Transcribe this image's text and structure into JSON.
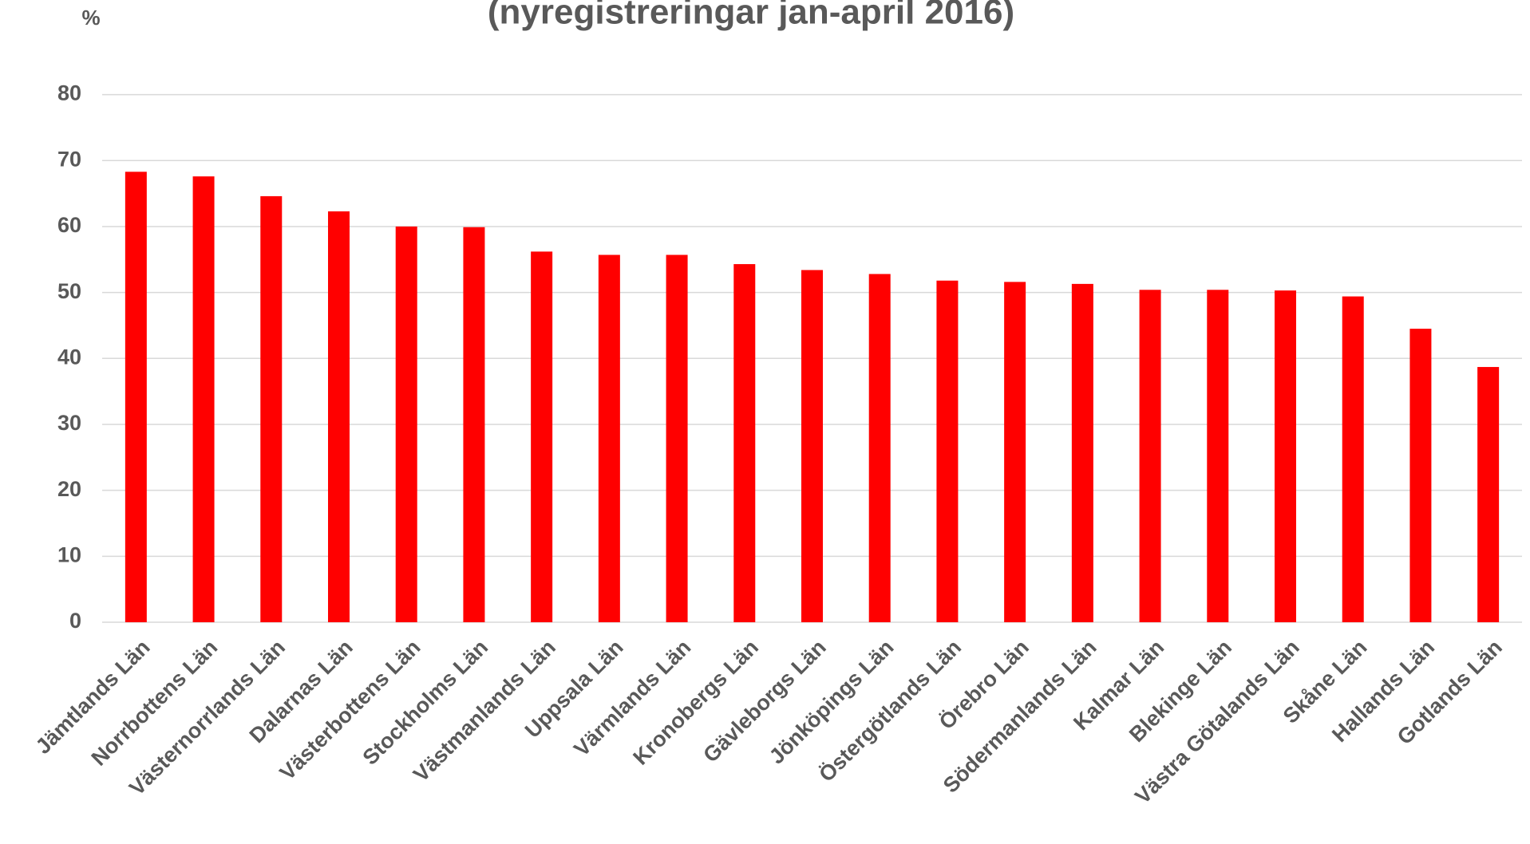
{
  "chart_data": {
    "type": "bar",
    "title": "(nyregistreringar jan-april 2016)",
    "y_label": "%",
    "categories": [
      "Jämtlands Län",
      "Norrbottens Län",
      "Västernorrlands Län",
      "Dalarnas Län",
      "Västerbottens Län",
      "Stockholms Län",
      "Västmanlands Län",
      "Uppsala Län",
      "Värmlands Län",
      "Kronobergs Län",
      "Gävleborgs Län",
      "Jönköpings Län",
      "Östergötlands Län",
      "Örebro Län",
      "Södermanlands Län",
      "Kalmar Län",
      "Blekinge Län",
      "Västra Götalands Län",
      "Skåne Län",
      "Hallands Län",
      "Gotlands Län"
    ],
    "values": [
      68.3,
      67.6,
      64.6,
      62.3,
      60.0,
      59.9,
      56.2,
      55.7,
      55.7,
      54.3,
      53.4,
      52.8,
      51.8,
      51.6,
      51.3,
      50.4,
      50.4,
      50.3,
      49.4,
      44.5,
      38.7
    ],
    "color": "#ff0000",
    "ylim": [
      0,
      80
    ],
    "yticks": [
      0,
      10,
      20,
      30,
      40,
      50,
      60,
      70,
      80
    ],
    "grid": true
  }
}
